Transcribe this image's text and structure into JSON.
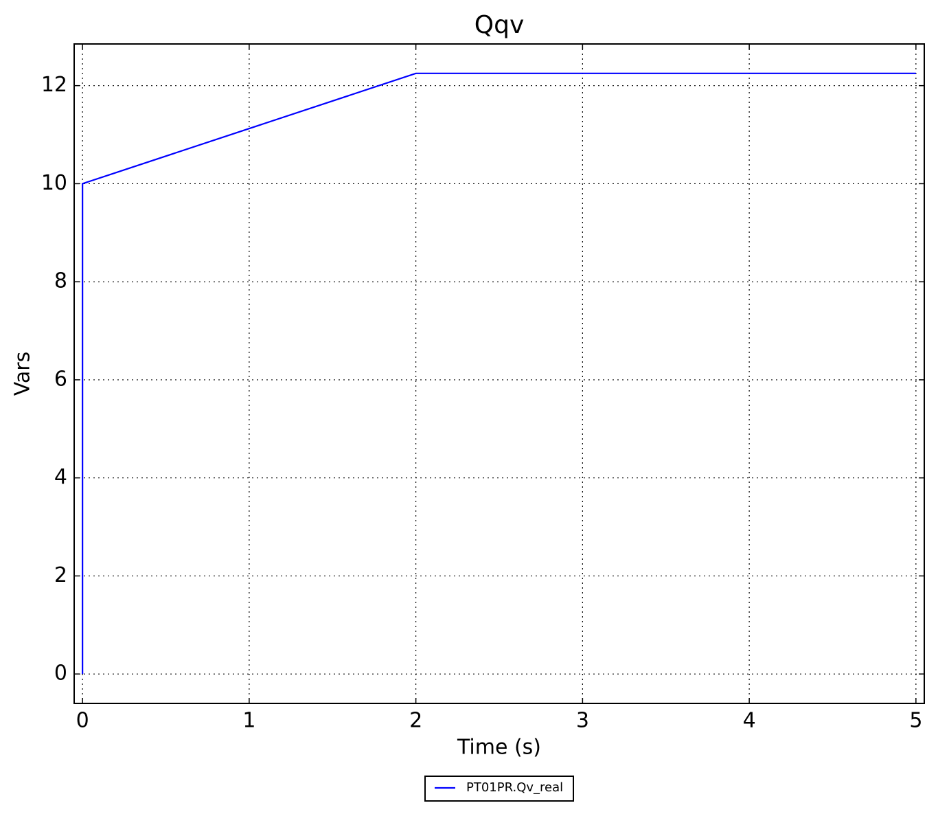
{
  "chart_data": {
    "type": "line",
    "title": "Qqv",
    "x_label": "Time (s)",
    "y_label": "Vars",
    "x": [
      0,
      0,
      2,
      5
    ],
    "series": [
      {
        "name": "PT01PR.Qv_real",
        "color": "#0000ff",
        "values": [
          0,
          10,
          12.25,
          12.25
        ]
      }
    ],
    "xlim": [
      -0.05,
      5.05
    ],
    "ylim": [
      -0.6,
      12.85
    ],
    "xticks": [
      0,
      1,
      2,
      3,
      4,
      5
    ],
    "yticks": [
      0,
      2,
      4,
      6,
      8,
      10,
      12
    ],
    "grid": true,
    "legend": "bottom"
  }
}
